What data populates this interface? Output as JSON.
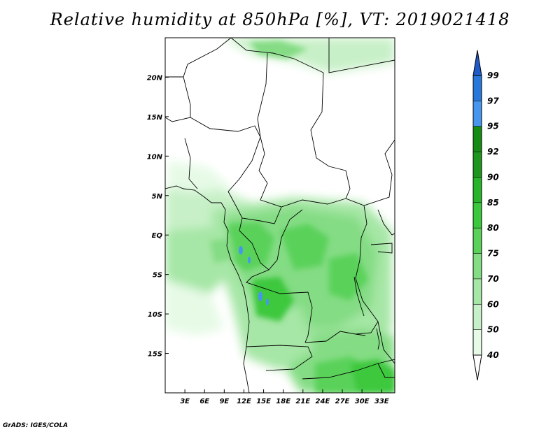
{
  "title": "Relative humidity at 850hPa [%], VT: 2019021418",
  "credit": "GrADS: IGES/COLA",
  "chart_data": {
    "type": "heatmap",
    "title": "Relative humidity at 850hPa [%], VT: 2019021418",
    "lon_ticks": [
      "3E",
      "6E",
      "9E",
      "12E",
      "15E",
      "18E",
      "21E",
      "24E",
      "27E",
      "30E",
      "33E"
    ],
    "lon_values": [
      3,
      6,
      9,
      12,
      15,
      18,
      21,
      24,
      27,
      30,
      33
    ],
    "lat_ticks": [
      "20N",
      "15N",
      "10N",
      "5N",
      "EQ",
      "5S",
      "10S",
      "15S"
    ],
    "lat_values": [
      20,
      15,
      10,
      5,
      0,
      -5,
      -10,
      -15
    ],
    "lon_range": [
      0,
      35
    ],
    "lat_range": [
      -20,
      25
    ],
    "colorbar": {
      "levels": [
        40,
        50,
        60,
        70,
        75,
        80,
        85,
        90,
        92,
        95,
        97,
        99
      ],
      "labels": [
        "40",
        "50",
        "60",
        "70",
        "75",
        "80",
        "85",
        "90",
        "92",
        "95",
        "97",
        "99"
      ],
      "colors": [
        "#e6fae6",
        "#c8f0c8",
        "#a6e6a6",
        "#84dc84",
        "#5ad25a",
        "#3cc83c",
        "#28b428",
        "#1e961e",
        "#148c14",
        "#4696f0",
        "#2878dc",
        "#1e5ac8"
      ]
    }
  }
}
